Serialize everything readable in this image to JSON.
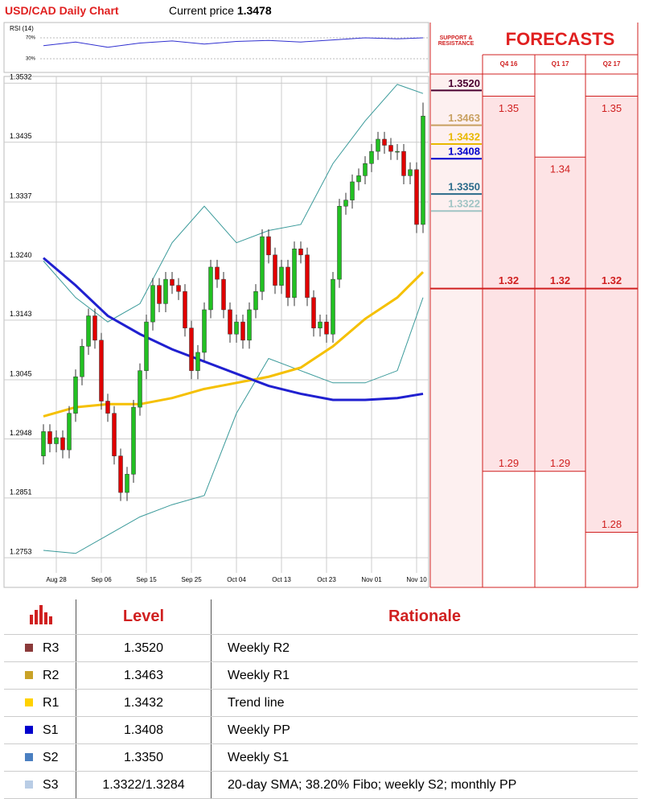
{
  "header": {
    "title": "USD/CAD Daily Chart",
    "price_label": "Current price",
    "price": "1.3478"
  },
  "chart_data": {
    "type": "candlestick",
    "categories": [
      null,
      null,
      "Aug 28",
      null,
      null,
      null,
      null,
      null,
      null,
      "Sep 06",
      null,
      null,
      null,
      null,
      null,
      null,
      "Sep 15",
      null,
      null,
      null,
      null,
      null,
      null,
      "Sep 25",
      null,
      null,
      null,
      null,
      null,
      null,
      "Oct 04",
      null,
      null,
      null,
      null,
      null,
      null,
      "Oct 13",
      null,
      null,
      null,
      null,
      null,
      null,
      "Oct 23",
      null,
      null,
      null,
      null,
      null,
      null,
      "Nov 01",
      null,
      null,
      null,
      null,
      null,
      null,
      "Nov 10",
      null
    ],
    "open": [
      1.292,
      1.296,
      1.294,
      1.295,
      1.293,
      1.299,
      1.305,
      1.31,
      1.315,
      1.311,
      1.301,
      1.299,
      1.292,
      1.286,
      1.289,
      1.3,
      1.306,
      1.314,
      1.32,
      1.317,
      1.321,
      1.32,
      1.319,
      1.313,
      1.306,
      1.309,
      1.316,
      1.323,
      1.321,
      1.316,
      1.312,
      1.314,
      1.311,
      1.316,
      1.319,
      1.328,
      1.325,
      1.32,
      1.323,
      1.318,
      1.326,
      1.325,
      1.318,
      1.313,
      1.314,
      1.312,
      1.321,
      1.333,
      1.334,
      1.337,
      1.338,
      1.34,
      1.342,
      1.344,
      1.343,
      1.342,
      1.342,
      1.338,
      1.339,
      1.33
    ],
    "high": [
      1.2972,
      1.2972,
      1.2962,
      1.2962,
      1.3002,
      1.3062,
      1.3112,
      1.3162,
      1.3162,
      1.3122,
      1.3022,
      1.3002,
      1.2932,
      1.2902,
      1.3012,
      1.3072,
      1.3152,
      1.3212,
      1.3212,
      1.3222,
      1.3222,
      1.3212,
      1.3202,
      1.3142,
      1.3102,
      1.3172,
      1.3242,
      1.3242,
      1.3222,
      1.3172,
      1.3152,
      1.3152,
      1.3172,
      1.3202,
      1.3292,
      1.3292,
      1.3262,
      1.3242,
      1.3242,
      1.3272,
      1.3272,
      1.3262,
      1.3192,
      1.3152,
      1.3152,
      1.3222,
      1.3342,
      1.3352,
      1.3382,
      1.3392,
      1.3412,
      1.3432,
      1.3452,
      1.3452,
      1.3442,
      1.3432,
      1.3432,
      1.3402,
      1.3402,
      1.35
    ],
    "low": [
      1.2906,
      1.2926,
      1.2926,
      1.2916,
      1.2916,
      1.2976,
      1.3036,
      1.3086,
      1.3096,
      1.2996,
      1.2976,
      1.2906,
      1.2846,
      1.2846,
      1.2876,
      1.2986,
      1.3046,
      1.3126,
      1.3156,
      1.3156,
      1.3186,
      1.3176,
      1.3116,
      1.3046,
      1.3046,
      1.3076,
      1.3146,
      1.3196,
      1.3146,
      1.3106,
      1.3106,
      1.3096,
      1.3096,
      1.3146,
      1.3176,
      1.3236,
      1.3186,
      1.3186,
      1.3166,
      1.3166,
      1.3236,
      1.3166,
      1.3116,
      1.3116,
      1.3106,
      1.3106,
      1.3196,
      1.3316,
      1.3326,
      1.3356,
      1.3366,
      1.3386,
      1.3406,
      1.3416,
      1.3406,
      1.3406,
      1.3366,
      1.3366,
      1.3286,
      1.3286
    ],
    "close": [
      1.296,
      1.294,
      1.295,
      1.293,
      1.299,
      1.305,
      1.31,
      1.315,
      1.311,
      1.301,
      1.299,
      1.292,
      1.286,
      1.289,
      1.3,
      1.306,
      1.314,
      1.32,
      1.317,
      1.321,
      1.32,
      1.319,
      1.313,
      1.306,
      1.309,
      1.316,
      1.323,
      1.321,
      1.316,
      1.312,
      1.314,
      1.311,
      1.316,
      1.319,
      1.328,
      1.325,
      1.32,
      1.323,
      1.318,
      1.326,
      1.325,
      1.318,
      1.313,
      1.314,
      1.312,
      1.321,
      1.333,
      1.334,
      1.337,
      1.338,
      1.34,
      1.342,
      1.344,
      1.343,
      1.342,
      1.342,
      1.338,
      1.339,
      1.33,
      1.3478
    ],
    "up_color": "#22c022",
    "down_color": "#e00000",
    "ylim": [
      1.2728,
      1.3543
    ],
    "yticks": [
      1.3532,
      1.3435,
      1.3337,
      {
        "value": 1.324,
        "label": "1.3240"
      },
      1.3143,
      1.3045,
      1.2948,
      1.2851,
      1.2753
    ],
    "grid": true,
    "overlays": [
      {
        "color": "#3a9a9a",
        "x": [
          0,
          5,
          10,
          15,
          20,
          25,
          30,
          35,
          40,
          45,
          50,
          55,
          59
        ],
        "values": [
          1.324,
          1.318,
          1.314,
          1.317,
          1.327,
          1.333,
          1.327,
          1.329,
          1.33,
          1.34,
          1.347,
          1.353,
          1.3515
        ]
      },
      {
        "color": "#3a9a9a",
        "x": [
          0,
          5,
          10,
          15,
          20,
          25,
          30,
          35,
          40,
          45,
          50,
          55,
          59
        ],
        "values": [
          1.2765,
          1.276,
          1.279,
          1.282,
          1.284,
          1.2855,
          1.299,
          1.308,
          1.306,
          1.304,
          1.304,
          1.306,
          1.318
        ]
      },
      {
        "color": "#f5c000",
        "x": [
          0,
          5,
          10,
          15,
          20,
          25,
          30,
          35,
          40,
          45,
          50,
          55,
          59
        ],
        "values": [
          1.2985,
          1.3,
          1.3005,
          1.3005,
          1.3015,
          1.303,
          1.304,
          1.305,
          1.3065,
          1.31,
          1.3145,
          1.318,
          1.3222
        ]
      },
      {
        "color": "#2020d0",
        "x": [
          0,
          5,
          10,
          15,
          20,
          25,
          30,
          35,
          40,
          45,
          50,
          55,
          59
        ],
        "values": [
          1.3245,
          1.32,
          1.315,
          1.312,
          1.3095,
          1.3075,
          1.3055,
          1.3035,
          1.3022,
          1.3012,
          1.3012,
          1.3015,
          1.3022
        ]
      }
    ],
    "levels": [
      {
        "value": 1.352,
        "label": "1.3520",
        "color": "#4a0030"
      },
      {
        "value": 1.3463,
        "label": "1.3463",
        "color": "#c8a060"
      },
      {
        "value": 1.3432,
        "label": "1.3432",
        "color": "#e8b800"
      },
      {
        "value": 1.3408,
        "label": "1.3408",
        "color": "#0000cc"
      },
      {
        "value": 1.335,
        "label": "1.3350",
        "color": "#2a6a8a"
      },
      {
        "value": 1.3322,
        "label": "1.3322",
        "color": "#a0c4c4"
      }
    ],
    "rsi": {
      "label": "RSI (14)",
      "ylim": [
        10,
        90
      ],
      "yticks": [
        {
          "value": 70,
          "label": "70%"
        },
        {
          "value": 30,
          "label": "30%"
        }
      ],
      "color": "#3030d0",
      "x": [
        0,
        5,
        10,
        15,
        20,
        25,
        30,
        35,
        40,
        45,
        50,
        55,
        59
      ],
      "values": [
        55,
        62,
        52,
        60,
        64,
        58,
        63,
        65,
        62,
        66,
        70,
        68,
        70
      ]
    }
  },
  "forecasts": {
    "title": "FORECASTS",
    "sr_label": "SUPPORT & RESISTANCE",
    "columns": [
      {
        "label": "Q4 16",
        "high": 1.35,
        "mid": 1.32,
        "low": 1.29
      },
      {
        "label": "Q1 17",
        "high": 1.34,
        "mid": 1.32,
        "low": 1.29
      },
      {
        "label": "Q2 17",
        "high": 1.35,
        "mid": 1.32,
        "low": 1.28
      }
    ]
  },
  "table": {
    "headers": [
      "Level",
      "Rationale"
    ],
    "colors": [
      "#8b3a3a",
      "#c9a227",
      "#ffd200",
      "#0000cc",
      "#4a7fc1",
      "#b9cde5"
    ],
    "rows": [
      [
        "R3",
        "1.3520",
        "Weekly R2"
      ],
      [
        "R2",
        "1.3463",
        "Weekly R1"
      ],
      [
        "R1",
        "1.3432",
        "Trend line"
      ],
      [
        "S1",
        "1.3408",
        "Weekly PP"
      ],
      [
        "S2",
        "1.3350",
        "Weekly S1"
      ],
      [
        "S3",
        "1.3322/1.3284",
        "20-day SMA; 38.20% Fibo; weekly S2; monthly PP"
      ]
    ]
  }
}
